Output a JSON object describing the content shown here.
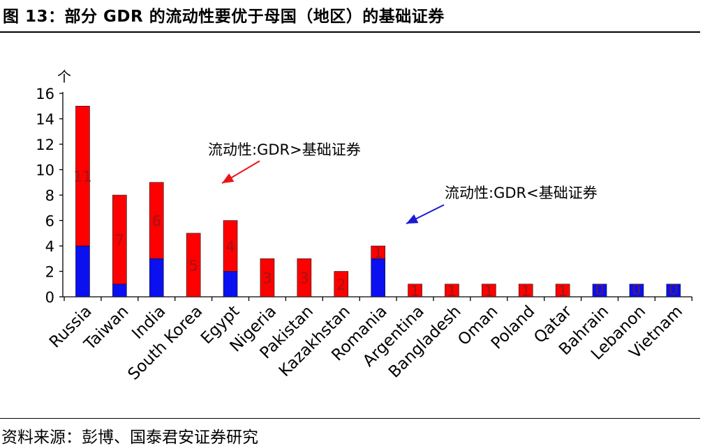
{
  "header": {
    "title": "图 13：部分 GDR 的流动性要优于母国（地区）的基础证券"
  },
  "footer": {
    "source": "资料来源：彭博、国泰君安证券研究"
  },
  "chart_data": {
    "type": "bar",
    "stacked": true,
    "title": "图 13：部分 GDR 的流动性要优于母国（地区）的基础证券",
    "ylabel": "个",
    "ylim": [
      0,
      16
    ],
    "yticks": [
      0,
      2,
      4,
      6,
      8,
      10,
      12,
      14,
      16
    ],
    "grid": false,
    "legend": "none",
    "categories": [
      "Russia",
      "Taiwan",
      "India",
      "South Korea",
      "Egypt",
      "Nigeria",
      "Pakistan",
      "Kazakhstan",
      "Romania",
      "Argentina",
      "Bangladesh",
      "Oman",
      "Poland",
      "Qatar",
      "Bahrain",
      "Lebanon",
      "Vietnam"
    ],
    "series": [
      {
        "color": "#0a10f0",
        "values": [
          4,
          1,
          3,
          0,
          2,
          0,
          0,
          0,
          3,
          0,
          0,
          0,
          0,
          0,
          1,
          1,
          1
        ]
      },
      {
        "color": "#ff0000",
        "values": [
          11,
          7,
          6,
          5,
          4,
          3,
          3,
          2,
          1,
          1,
          1,
          1,
          1,
          1,
          0,
          0,
          0
        ]
      }
    ],
    "data_labels": [
      "11",
      "7",
      "6",
      "5",
      "4",
      "3",
      "3",
      "2",
      "1",
      "1",
      "1",
      "1",
      "1",
      "1",
      "0",
      "0",
      "0"
    ],
    "annotations": [
      {
        "text": "流动性:GDR>基础证券",
        "color": "#e8141b"
      },
      {
        "text": "流动性:GDR<基础证券",
        "color": "#1a1ad6"
      }
    ]
  }
}
